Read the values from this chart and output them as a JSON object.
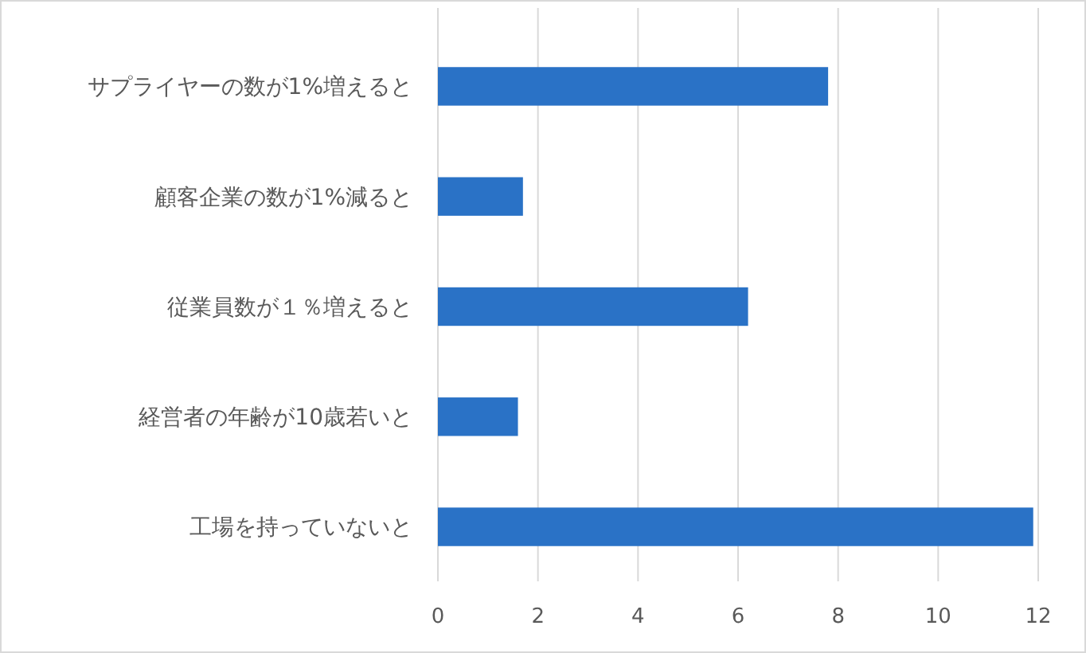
{
  "chart_data": {
    "type": "bar",
    "orientation": "horizontal",
    "categories": [
      "サプライヤーの数が1%増えると",
      "顧客企業の数が1%減ると",
      "従業員数が１％増えると",
      "経営者の年齢が10歳若いと",
      "工場を持っていないと"
    ],
    "values": [
      7.8,
      1.7,
      6.2,
      1.6,
      11.9
    ],
    "color": "#2a72c6",
    "xlim": [
      0,
      12
    ],
    "xticks": [
      0,
      2,
      4,
      6,
      8,
      10,
      12
    ],
    "grid": "x"
  }
}
